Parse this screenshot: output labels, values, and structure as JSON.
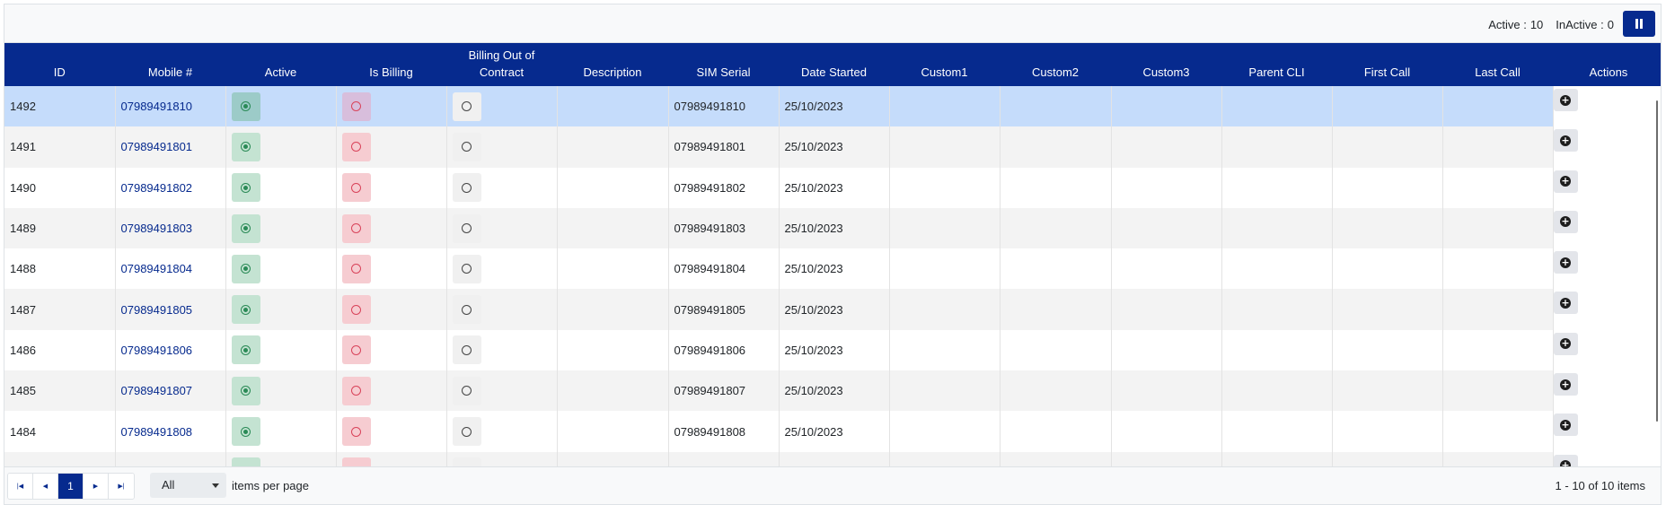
{
  "toolbar": {
    "active_label": "Active :",
    "active_count": "10",
    "inactive_label": "InActive :",
    "inactive_count": "0",
    "columns_icon": "columns-icon"
  },
  "columns": [
    "ID",
    "Mobile #",
    "Active",
    "Is Billing",
    "Billing Out of Contract",
    "Description",
    "SIM Serial",
    "Date Started",
    "Custom1",
    "Custom2",
    "Custom3",
    "Parent CLI",
    "First Call",
    "Last Call",
    "Actions"
  ],
  "rows": [
    {
      "id": "1492",
      "mobile": "07989491810",
      "sim": "07989491810",
      "date": "25/10/2023"
    },
    {
      "id": "1491",
      "mobile": "07989491801",
      "sim": "07989491801",
      "date": "25/10/2023"
    },
    {
      "id": "1490",
      "mobile": "07989491802",
      "sim": "07989491802",
      "date": "25/10/2023"
    },
    {
      "id": "1489",
      "mobile": "07989491803",
      "sim": "07989491803",
      "date": "25/10/2023"
    },
    {
      "id": "1488",
      "mobile": "07989491804",
      "sim": "07989491804",
      "date": "25/10/2023"
    },
    {
      "id": "1487",
      "mobile": "07989491805",
      "sim": "07989491805",
      "date": "25/10/2023"
    },
    {
      "id": "1486",
      "mobile": "07989491806",
      "sim": "07989491806",
      "date": "25/10/2023"
    },
    {
      "id": "1485",
      "mobile": "07989491807",
      "sim": "07989491807",
      "date": "25/10/2023"
    },
    {
      "id": "1484",
      "mobile": "07989491808",
      "sim": "07989491808",
      "date": "25/10/2023"
    },
    {
      "id": "",
      "mobile": "",
      "sim": "",
      "date": ""
    }
  ],
  "pager": {
    "current_page": "1",
    "per_page_value": "All",
    "per_page_label": "items per page",
    "range_text": "1 - 10 of 10 items",
    "first_icon": "first-page-icon",
    "prev_icon": "prev-page-icon",
    "next_icon": "next-page-icon",
    "last_icon": "last-page-icon"
  },
  "colors": {
    "header": "#062a8e",
    "selected_row": "#c5dcfb",
    "active_green": "#2a8a56",
    "billing_red": "#d9435a"
  }
}
